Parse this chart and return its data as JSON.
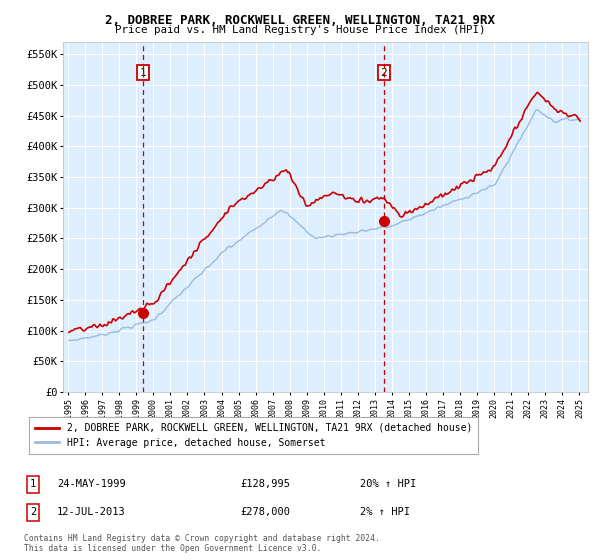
{
  "title": "2, DOBREE PARK, ROCKWELL GREEN, WELLINGTON, TA21 9RX",
  "subtitle": "Price paid vs. HM Land Registry's House Price Index (HPI)",
  "sale1_date": "24-MAY-1999",
  "sale1_price": 128995,
  "sale1_label": "20% ↑ HPI",
  "sale1_year": 1999.38,
  "sale2_date": "12-JUL-2013",
  "sale2_price": 278000,
  "sale2_label": "2% ↑ HPI",
  "sale2_year": 2013.53,
  "legend_house": "2, DOBREE PARK, ROCKWELL GREEN, WELLINGTON, TA21 9RX (detached house)",
  "legend_hpi": "HPI: Average price, detached house, Somerset",
  "footnote": "Contains HM Land Registry data © Crown copyright and database right 2024.\nThis data is licensed under the Open Government Licence v3.0.",
  "ylim": [
    0,
    570000
  ],
  "yticks": [
    0,
    50000,
    100000,
    150000,
    200000,
    250000,
    300000,
    350000,
    400000,
    450000,
    500000,
    550000
  ],
  "bg_color": "#ddeeff",
  "grid_color": "#ffffff",
  "red_line_color": "#cc0000",
  "blue_line_color": "#99bbdd",
  "vline_color": "#cc0000",
  "box_color": "#cc0000"
}
